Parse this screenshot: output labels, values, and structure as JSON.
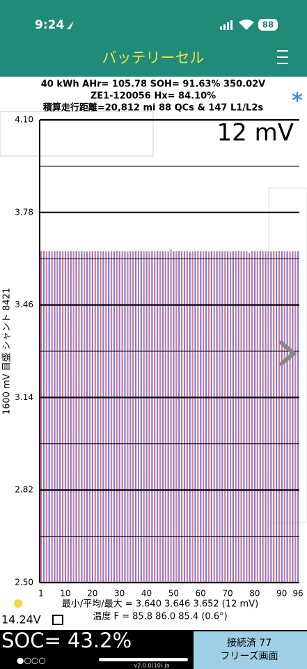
{
  "status_bar": {
    "time": "9:24",
    "battery": "88"
  },
  "header": {
    "title": "バッテリーセル"
  },
  "stats": {
    "line1": "40 kWh  AHr= 105.78  SOH= 91.63%   350.02V",
    "line2": "ZE1-120056    Hx= 84.10%",
    "line3": "積算走行距離=20,812 mi 88 QCs & 147 L1/L2s"
  },
  "chart_data": {
    "type": "bar",
    "annotation": "12 mV",
    "y_label": "1600 mV 目盛   シャント 8421",
    "categories": [
      "1",
      null,
      null,
      null,
      null,
      null,
      null,
      null,
      null,
      "10",
      null,
      null,
      null,
      null,
      null,
      null,
      null,
      null,
      null,
      "20",
      null,
      null,
      null,
      null,
      null,
      null,
      null,
      null,
      null,
      "30",
      null,
      null,
      null,
      null,
      null,
      null,
      null,
      null,
      null,
      "40",
      null,
      null,
      null,
      null,
      null,
      null,
      null,
      null,
      null,
      "50",
      null,
      null,
      null,
      null,
      null,
      null,
      null,
      null,
      null,
      "60",
      null,
      null,
      null,
      null,
      null,
      null,
      null,
      null,
      null,
      "70",
      null,
      null,
      null,
      null,
      null,
      null,
      null,
      null,
      null,
      "80",
      null,
      null,
      null,
      null,
      null,
      null,
      null,
      null,
      null,
      "90",
      null,
      null,
      null,
      null,
      null,
      "96"
    ],
    "values": [
      3.646,
      3.647,
      3.646,
      3.646,
      3.645,
      3.646,
      3.647,
      3.646,
      3.646,
      3.646,
      3.645,
      3.646,
      3.646,
      3.647,
      3.646,
      3.646,
      3.646,
      3.645,
      3.646,
      3.646,
      3.647,
      3.646,
      3.646,
      3.646,
      3.646,
      3.645,
      3.646,
      3.646,
      3.647,
      3.646,
      3.646,
      3.646,
      3.645,
      3.646,
      3.646,
      3.646,
      3.647,
      3.646,
      3.646,
      3.646,
      3.645,
      3.646,
      3.646,
      3.647,
      3.646,
      3.646,
      3.646,
      3.645,
      3.652,
      3.646,
      3.646,
      3.647,
      3.646,
      3.646,
      3.646,
      3.645,
      3.646,
      3.646,
      3.647,
      3.646,
      3.646,
      3.646,
      3.645,
      3.646,
      3.646,
      3.646,
      3.647,
      3.646,
      3.646,
      3.646,
      3.645,
      3.646,
      3.646,
      3.647,
      3.646,
      3.646,
      3.646,
      3.64,
      3.646,
      3.646,
      3.646,
      3.647,
      3.646,
      3.646,
      3.646,
      3.645,
      3.646,
      3.646,
      3.647,
      3.646,
      3.646,
      3.646,
      3.645,
      3.646,
      3.646,
      3.646
    ],
    "bar_colors": [
      "#e8737e",
      "#6f82ee"
    ],
    "ylim": [
      2.5,
      4.1
    ],
    "yticks": [
      {
        "value": 4.1,
        "label": "4.10"
      },
      {
        "value": 3.78,
        "label": "3.78"
      },
      {
        "value": 3.46,
        "label": "3.46"
      },
      {
        "value": 3.14,
        "label": "3.14"
      },
      {
        "value": 2.82,
        "label": "2.82"
      },
      {
        "value": 2.5,
        "label": "2.50"
      }
    ],
    "minor_yticks": [
      3.94,
      3.62,
      3.3,
      2.98,
      2.66
    ],
    "grid": true
  },
  "footer": {
    "minmax": "最小/平均/最大 = 3.640 3.646 3.652  (12 mV)",
    "temperature": "温度 F = 85.8  86.0  85.4  (0.6°)",
    "voltage_12v": "14.24V",
    "soc": "SOC= 43.2%",
    "version": "v2.0.0(10) ja",
    "connection": "接続済 77",
    "freeze": "フリーズ画面"
  }
}
